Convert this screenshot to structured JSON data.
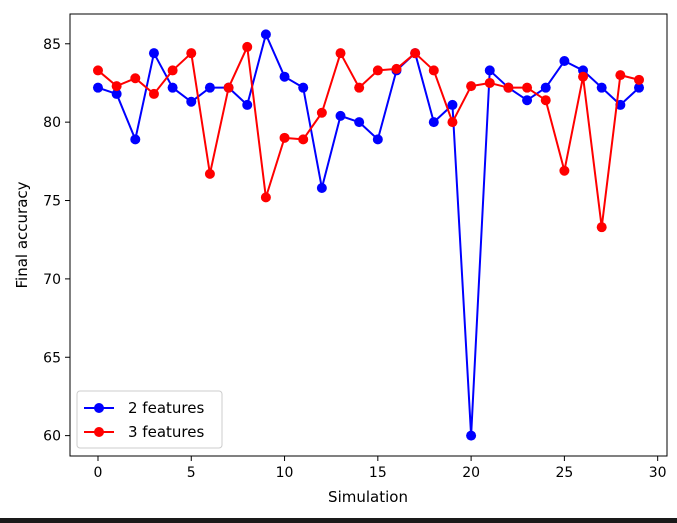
{
  "chart_data": {
    "type": "line",
    "title": "",
    "xlabel": "Simulation",
    "ylabel": "Final accuracy",
    "xlim": [
      -1.5,
      30.5
    ],
    "ylim": [
      58.7,
      86.9
    ],
    "xticks": [
      0,
      5,
      10,
      15,
      20,
      25,
      30
    ],
    "yticks": [
      60,
      65,
      70,
      75,
      80,
      85
    ],
    "legend_position": "lower-left",
    "x": [
      0,
      1,
      2,
      3,
      4,
      5,
      6,
      7,
      8,
      9,
      10,
      11,
      12,
      13,
      14,
      15,
      16,
      17,
      18,
      19,
      20,
      21,
      22,
      23,
      24,
      25,
      26,
      27,
      28,
      29
    ],
    "series": [
      {
        "name": "2 features",
        "color": "#0000ff",
        "values": [
          82.2,
          81.8,
          78.9,
          84.4,
          82.2,
          81.3,
          82.2,
          82.2,
          81.1,
          85.6,
          82.9,
          82.2,
          75.8,
          80.4,
          80.0,
          78.9,
          83.3,
          84.4,
          80.0,
          81.1,
          60.0,
          83.3,
          82.2,
          81.4,
          82.2,
          83.9,
          83.3,
          82.2,
          81.1,
          82.2
        ]
      },
      {
        "name": "3 features",
        "color": "#ff0000",
        "values": [
          83.3,
          82.3,
          82.8,
          81.8,
          83.3,
          84.4,
          76.7,
          82.2,
          84.8,
          75.2,
          79.0,
          78.9,
          80.6,
          84.4,
          82.2,
          83.3,
          83.4,
          84.4,
          83.3,
          80.0,
          82.3,
          82.5,
          82.2,
          82.2,
          81.4,
          76.9,
          82.9,
          73.3,
          83.0,
          82.7
        ]
      }
    ]
  }
}
